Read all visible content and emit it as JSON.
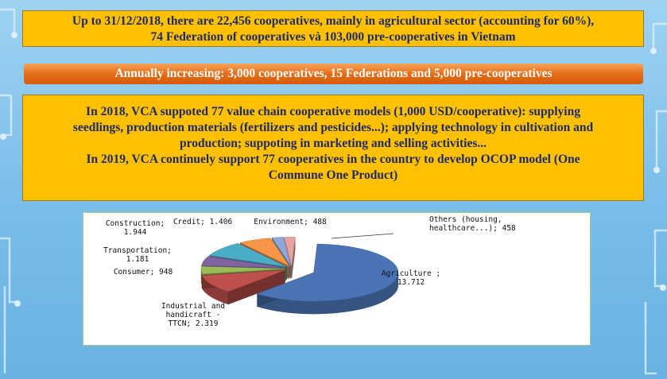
{
  "box1": {
    "line1": "Up to 31/12/2018, there are 22,456 cooperatives, mainly in agricultural sector (accounting for 60%),",
    "line2": "74 Federation of cooperatives và 103,000 pre-cooperatives in Vietnam"
  },
  "box2": {
    "text": "Annually increasing: 3,000 cooperatives, 15 Federations and 5,000 pre-cooperatives"
  },
  "box3": {
    "line1": "In 2018, VCA suppoted 77 value chain cooperative models (1,000 USD/cooperative): supplying",
    "line2": "seedlings, production materials (fertilizers and pesticides...); applying technology in cultivation and",
    "line3": "production; suppoting in marketing and selling activities...",
    "line4": "In 2019, VCA continuely support 77 cooperatives in the country to develop OCOP model (One",
    "line5": "Commune One Product)"
  },
  "colors": {
    "box_fill": "#ffc000",
    "orange_bar": "#e56d17",
    "text_navy": "#1f2a6b"
  },
  "chart_data": {
    "type": "pie",
    "style": "3d-exploded",
    "title": "",
    "slices": [
      {
        "label_lines": [
          "Agriculture ;",
          "13.712"
        ],
        "value": 13712,
        "color": "#4a74b5"
      },
      {
        "label_lines": [
          "Industrial and",
          "handicraft -",
          "TTCN;  2.319"
        ],
        "value": 2319,
        "color": "#c0504d"
      },
      {
        "label_lines": [
          "Consumer;  948"
        ],
        "value": 948,
        "color": "#9bbb59"
      },
      {
        "label_lines": [
          "Transportation;",
          "1.181"
        ],
        "value": 1181,
        "color": "#8064a2"
      },
      {
        "label_lines": [
          "Construction;",
          "1.944"
        ],
        "value": 1944,
        "color": "#4bacc6"
      },
      {
        "label_lines": [
          "Credit;  1.406"
        ],
        "value": 1406,
        "color": "#f79646"
      },
      {
        "label_lines": [
          "Environment;  488"
        ],
        "value": 488,
        "color": "#8ea8d6"
      },
      {
        "label_lines": [
          "Others (housing,",
          "healthcare...);  458"
        ],
        "value": 458,
        "color": "#e6a3a1"
      }
    ]
  }
}
